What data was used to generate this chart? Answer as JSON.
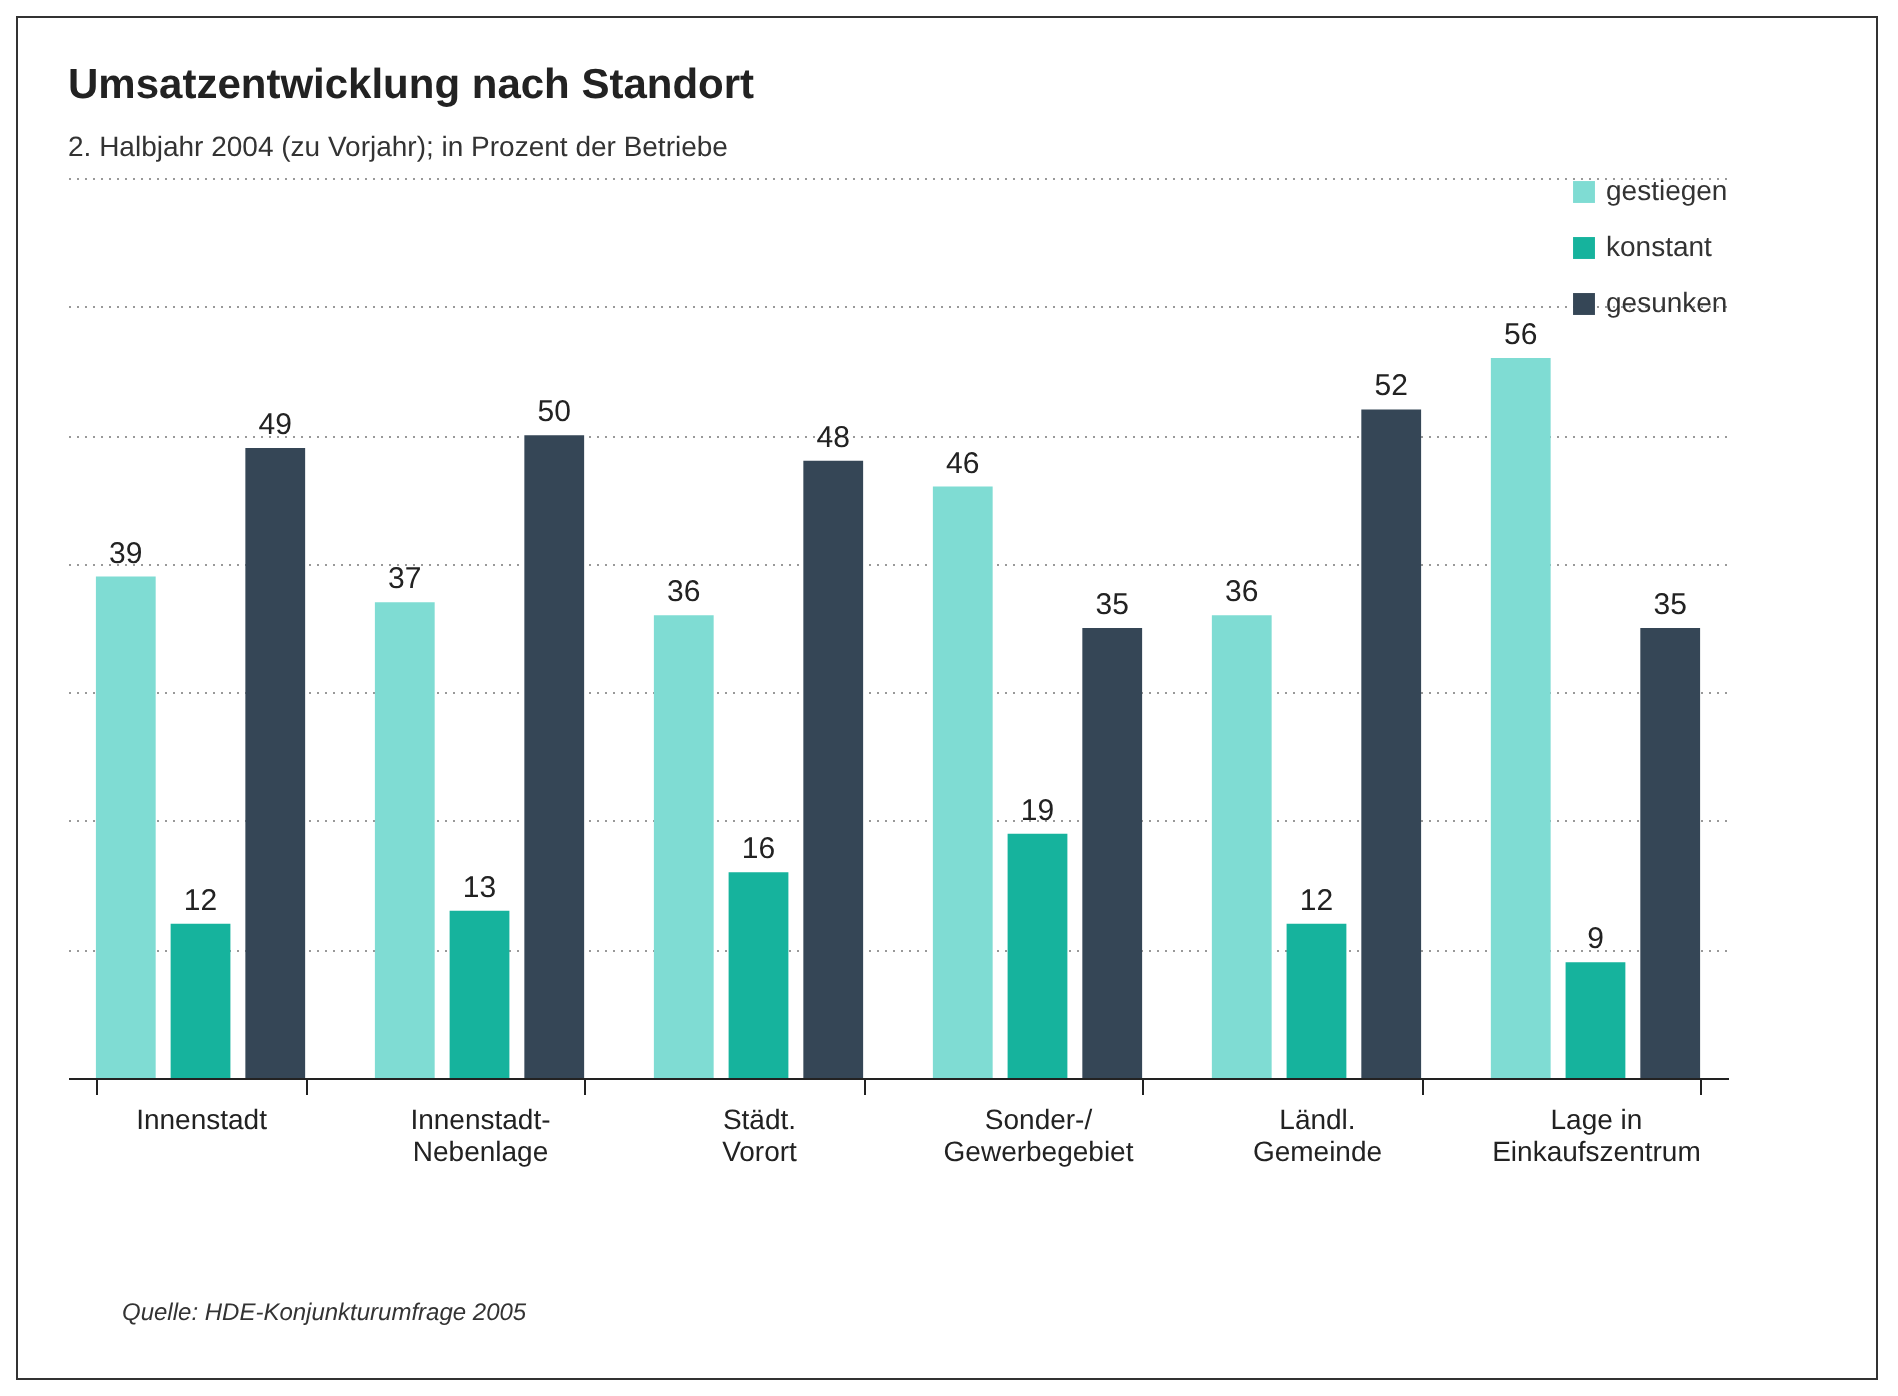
{
  "chart_data": {
    "type": "bar",
    "title": "Umsatzentwicklung nach Standort",
    "subtitle": "2. Halbjahr 2004 (zu Vorjahr); in Prozent der Betriebe",
    "categories": [
      "Innenstadt",
      "Innenstadt-\nNebenlage",
      "Städt.\nVorort",
      "Sonder-/\nGewerbegebiet",
      "Ländl.\nGemeinde",
      "Lage in\nEinkaufszentrum"
    ],
    "series": [
      {
        "name": "gestiegen",
        "color": "#7fdcd3",
        "values": [
          39,
          37,
          36,
          46,
          36,
          56
        ]
      },
      {
        "name": "konstant",
        "color": "#16b39d",
        "values": [
          12,
          13,
          16,
          19,
          12,
          9
        ]
      },
      {
        "name": "gesunken",
        "color": "#354656",
        "values": [
          49,
          50,
          48,
          35,
          52,
          35
        ]
      }
    ],
    "ylim": [
      0,
      70
    ],
    "yticks": [
      {
        "value": 10,
        "label": null
      },
      {
        "value": 20,
        "label": null
      },
      {
        "value": 30,
        "label": null
      },
      {
        "value": 40,
        "label": null
      },
      {
        "value": 50,
        "label": null
      },
      {
        "value": 60,
        "label": null
      },
      {
        "value": 70,
        "label": null
      }
    ],
    "tick_labels": "x",
    "grid": "y",
    "legend": "top right",
    "data_labels": true,
    "annotations": [
      "Quelle: HDE-Konjunkturumfrage 2005"
    ]
  }
}
